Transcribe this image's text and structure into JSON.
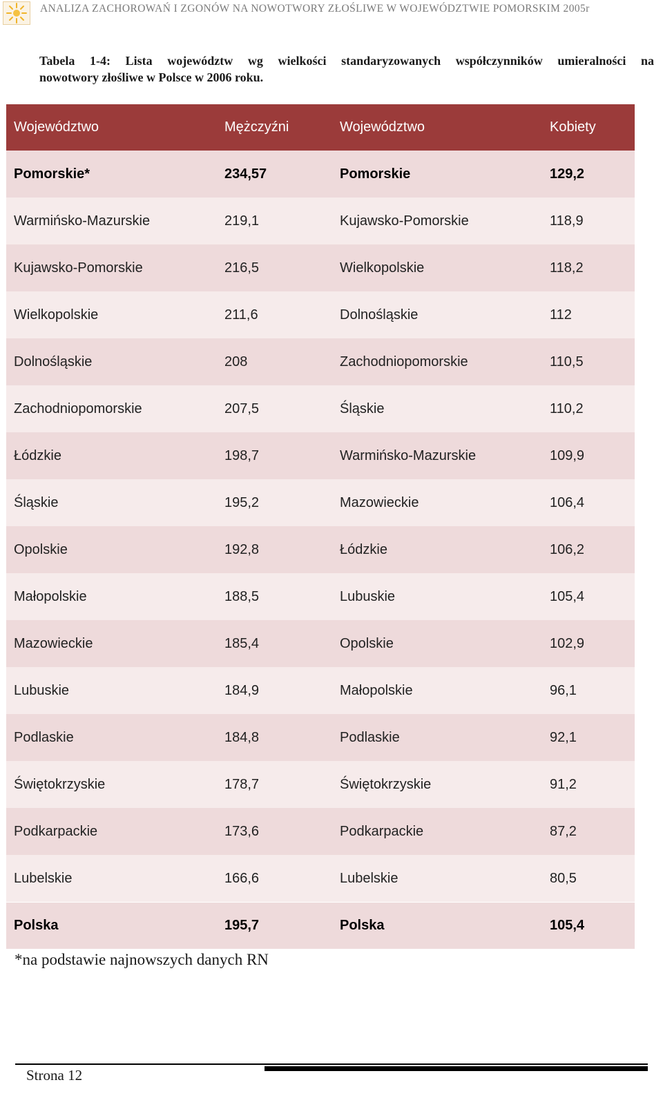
{
  "header": {
    "title": "ANALIZA ZACHOROWAŃ I ZGONÓW NA NOWOTWORY ZŁOŚLIWE W  WOJEWÓDZTWIE POMORSKIM 2005r"
  },
  "caption": {
    "line1": "Tabela 1-4: Lista województw wg wielkości standaryzowanych współczynników umieralności na",
    "line2": "nowotwory złośliwe w Polsce w 2006 roku."
  },
  "table": {
    "headers": [
      "Województwo",
      "Mężczyźni",
      "Województwo",
      "Kobiety"
    ],
    "rows": [
      [
        "Pomorskie*",
        "234,57",
        "Pomorskie",
        "129,2"
      ],
      [
        "Warmińsko-Mazurskie",
        "219,1",
        "Kujawsko-Pomorskie",
        "118,9"
      ],
      [
        "Kujawsko-Pomorskie",
        "216,5",
        "Wielkopolskie",
        "118,2"
      ],
      [
        "Wielkopolskie",
        "211,6",
        "Dolnośląskie",
        "112"
      ],
      [
        "Dolnośląskie",
        "208",
        "Zachodniopomorskie",
        "110,5"
      ],
      [
        "Zachodniopomorskie",
        "207,5",
        "Śląskie",
        "110,2"
      ],
      [
        "Łódzkie",
        "198,7",
        "Warmińsko-Mazurskie",
        "109,9"
      ],
      [
        "Śląskie",
        "195,2",
        "Mazowieckie",
        "106,4"
      ],
      [
        "Opolskie",
        "192,8",
        "Łódzkie",
        "106,2"
      ],
      [
        "Małopolskie",
        "188,5",
        "Lubuskie",
        "105,4"
      ],
      [
        "Mazowieckie",
        "185,4",
        "Opolskie",
        "102,9"
      ],
      [
        "Lubuskie",
        "184,9",
        "Małopolskie",
        "96,1"
      ],
      [
        "Podlaskie",
        "184,8",
        "Podlaskie",
        "92,1"
      ],
      [
        "Świętokrzyskie",
        "178,7",
        "Świętokrzyskie",
        "91,2"
      ],
      [
        "Podkarpackie",
        "173,6",
        "Podkarpackie",
        "87,2"
      ],
      [
        "Lubelskie",
        "166,6",
        "Lubelskie",
        "80,5"
      ]
    ],
    "total": [
      "Polska",
      "195,7",
      "Polska",
      "105,4"
    ]
  },
  "footnote": "*na podstawie najnowszych danych RN",
  "footer": {
    "page_label": "Strona 12"
  },
  "colors": {
    "header_bg": "#9b3b3a",
    "row_dark": "#eedadb",
    "row_light": "#f6ebeb"
  },
  "icons": {
    "logo": "sun-logo-icon"
  }
}
